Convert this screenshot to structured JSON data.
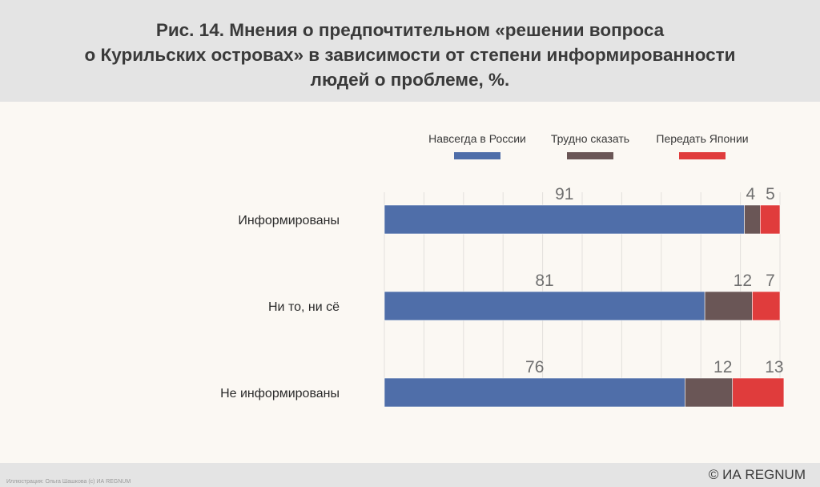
{
  "title": "Рис. 14. Мнения о предпочтительном «решении вопроса\nо Курильских островах» в зависимости от степени информированности\nлюдей о проблеме, %.",
  "footer": {
    "credit": "Иллюстрация: Ольга Шашкова (c) ИА REGNUM",
    "copyright": "© ИА REGNUM"
  },
  "chart_data": {
    "type": "bar",
    "orientation": "horizontal",
    "stacked": true,
    "categories": [
      "Информированы",
      "Ни то, ни сё",
      "Не информированы"
    ],
    "series": [
      {
        "name": "Навсегда в России",
        "values": [
          91,
          81,
          76
        ],
        "color": "#4f6ea9"
      },
      {
        "name": "Трудно сказать",
        "values": [
          4,
          12,
          12
        ],
        "color": "#6a5656"
      },
      {
        "name": "Передать Японии",
        "values": [
          5,
          7,
          13
        ],
        "color": "#e03c3c"
      }
    ],
    "xlim": [
      0,
      100
    ],
    "grid": true,
    "legend_position": "top"
  }
}
